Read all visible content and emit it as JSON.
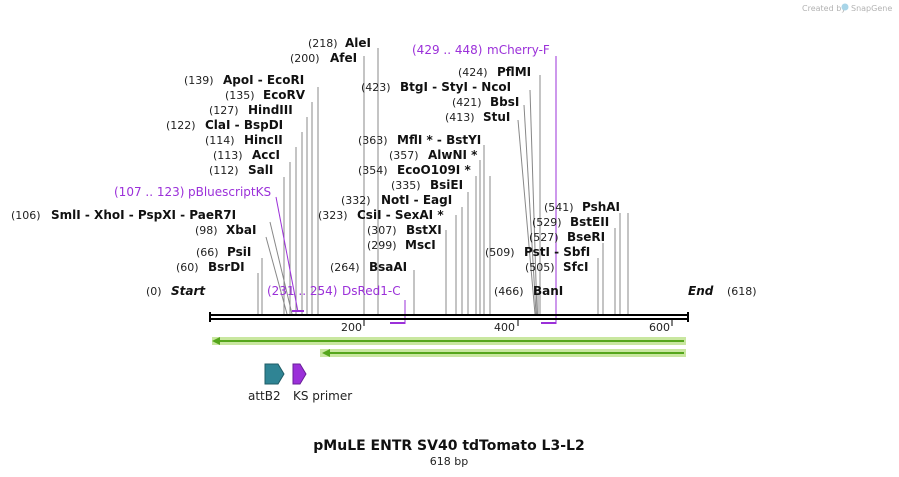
{
  "credit": "Created by",
  "brand": "SnapGene",
  "title": "pMuLE ENTR SV40 tdTomato L3-L2",
  "length_label": "618 bp",
  "axis": {
    "start_label": "Start",
    "start_pos": "(0)",
    "end_label": "End",
    "end_pos": "(618)",
    "ticks": [
      "200",
      "400",
      "600"
    ]
  },
  "sites": [
    {
      "pos": "(218)",
      "names": "AleI"
    },
    {
      "pos": "(200)",
      "names": "AfeI"
    },
    {
      "pos": "(139)",
      "names": "ApoI - EcoRI"
    },
    {
      "pos": "(135)",
      "names": "EcoRV"
    },
    {
      "pos": "(127)",
      "names": "HindIII"
    },
    {
      "pos": "(122)",
      "names": "ClaI - BspDI"
    },
    {
      "pos": "(114)",
      "names": "HincII"
    },
    {
      "pos": "(113)",
      "names": "AccI"
    },
    {
      "pos": "(112)",
      "names": "SalI"
    },
    {
      "pos": "(106)",
      "names": "SmlI - XhoI - PspXI - PaeR7I"
    },
    {
      "pos": "(98)",
      "names": "XbaI"
    },
    {
      "pos": "(66)",
      "names": "PsiI"
    },
    {
      "pos": "(60)",
      "names": "BsrDI"
    },
    {
      "pos": "(423)",
      "names": "BtgI - StyI - NcoI"
    },
    {
      "pos": "(424)",
      "names": "PflMI"
    },
    {
      "pos": "(421)",
      "names": "BbsI"
    },
    {
      "pos": "(413)",
      "names": "StuI"
    },
    {
      "pos": "(363)",
      "names": "MflI * - BstYI"
    },
    {
      "pos": "(357)",
      "names": "AlwNI *"
    },
    {
      "pos": "(354)",
      "names": "EcoO109I *"
    },
    {
      "pos": "(335)",
      "names": "BsiEI"
    },
    {
      "pos": "(332)",
      "names": "NotI - EagI"
    },
    {
      "pos": "(323)",
      "names": "CsiI - SexAI *"
    },
    {
      "pos": "(307)",
      "names": "BstXI"
    },
    {
      "pos": "(299)",
      "names": "MscI"
    },
    {
      "pos": "(264)",
      "names": "BsaAI"
    },
    {
      "pos": "(541)",
      "names": "PshAI"
    },
    {
      "pos": "(529)",
      "names": "BstEII"
    },
    {
      "pos": "(527)",
      "names": "BseRI"
    },
    {
      "pos": "(509)",
      "names": "PstI - SbfI"
    },
    {
      "pos": "(505)",
      "names": "SfcI"
    },
    {
      "pos": "(466)",
      "names": "BanI"
    }
  ],
  "primers": [
    {
      "range": "(429 .. 448)",
      "name": "mCherry-F"
    },
    {
      "range": "(107 .. 123)",
      "name": "pBluescriptKS"
    },
    {
      "range": "(231 .. 254)",
      "name": "DsRed1-C"
    }
  ],
  "features": [
    {
      "name": "attB2",
      "color": "#2f8494"
    },
    {
      "name": "KS primer",
      "color": "#9b30d9"
    }
  ],
  "colors": {
    "primer": "#9b30d9",
    "orf_fill": "#55a61c",
    "orf_border": "#c9e7a0",
    "backbone": "#000000"
  }
}
